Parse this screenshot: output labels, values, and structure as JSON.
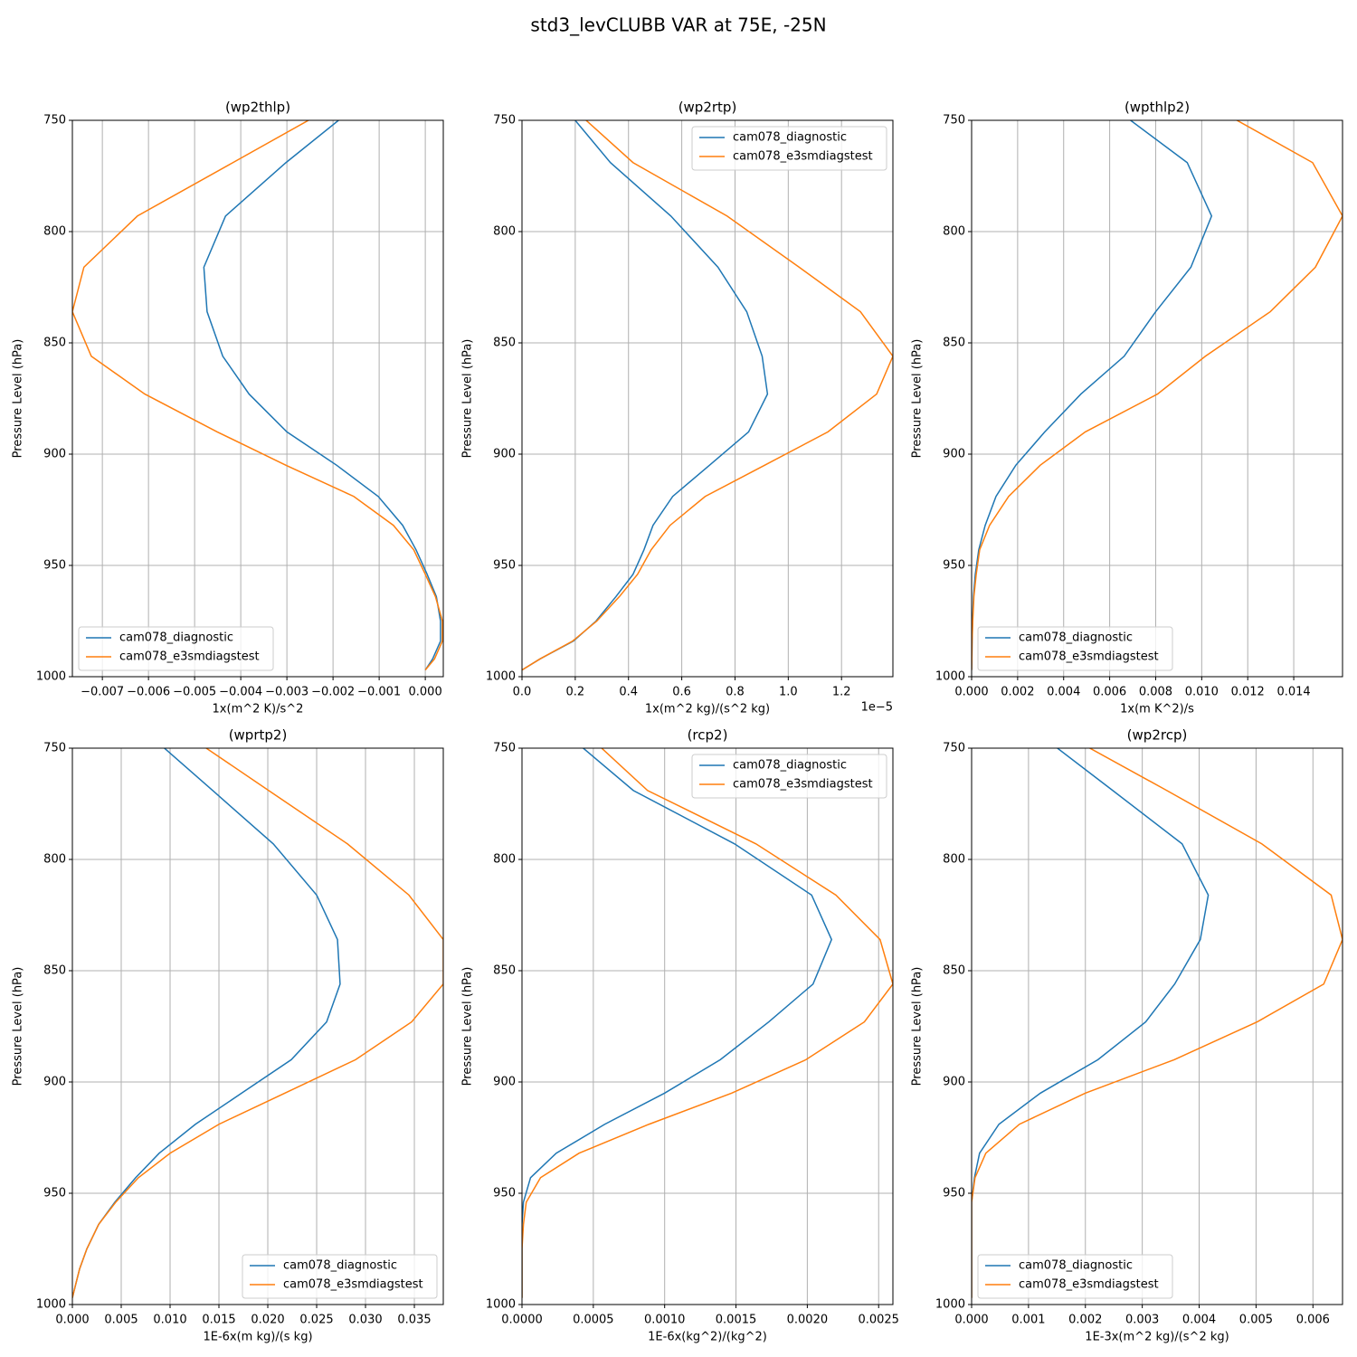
{
  "title": "std3_levCLUBB VAR at 75E, -25N",
  "chart_data": [
    {
      "type": "line",
      "title": "(wp2thlp)",
      "xlabel": "1x(m^2 K)/s^2",
      "ylabel": "Pressure Level (hPa)",
      "y": [
        743,
        769,
        793,
        816,
        836,
        856,
        873,
        890,
        905,
        919,
        932,
        943,
        954,
        964,
        975,
        984,
        992,
        997
      ],
      "series": [
        {
          "name": "cam078_diagnostic",
          "color": "#1f77b4",
          "values": [
            -0.00146,
            -0.00302,
            -0.00433,
            -0.0048,
            -0.00473,
            -0.00439,
            -0.00382,
            -0.003,
            -0.00192,
            -0.00102,
            -0.00049,
            -0.0002,
            4e-05,
            0.00024,
            0.00033,
            0.00033,
            0.00016,
            0
          ]
        },
        {
          "name": "cam078_e3smdiagstest",
          "color": "#ff7f0e",
          "values": [
            -0.00193,
            -0.00417,
            -0.00624,
            -0.0074,
            -0.00765,
            -0.00724,
            -0.00608,
            -0.00451,
            -0.00302,
            -0.00155,
            -0.00069,
            -0.00025,
            0,
            0.00022,
            0.00037,
            0.00037,
            0.0002,
            0
          ]
        }
      ],
      "xlim": [
        -0.00765,
        0.00039
      ],
      "xticks": [
        {
          "value": -0.007,
          "label": "−0.007"
        },
        {
          "value": -0.006,
          "label": "−0.006"
        },
        {
          "value": -0.005,
          "label": "−0.005"
        },
        {
          "value": -0.004,
          "label": "−0.004"
        },
        {
          "value": -0.003,
          "label": "−0.003"
        },
        {
          "value": -0.002,
          "label": "−0.002"
        },
        {
          "value": -0.001,
          "label": "−0.001"
        },
        {
          "value": 0,
          "label": "0.000"
        }
      ],
      "ylim": [
        1000,
        750
      ],
      "yticks": [
        750,
        800,
        850,
        900,
        950,
        1000
      ],
      "grid": true,
      "legend": "lower left"
    },
    {
      "type": "line",
      "title": "(wp2rtp)",
      "xlabel": "1x(m^2 kg)/(s^2 kg)",
      "ylabel": "Pressure Level (hPa)",
      "x_offset_label": "1e−5",
      "y": [
        743,
        769,
        793,
        816,
        836,
        856,
        873,
        890,
        905,
        919,
        932,
        943,
        954,
        964,
        975,
        984,
        992,
        997
      ],
      "series": [
        {
          "name": "cam078_diagnostic",
          "color": "#1f77b4",
          "values": [
            0.151,
            0.332,
            0.559,
            0.736,
            0.844,
            0.902,
            0.922,
            0.851,
            0.704,
            0.566,
            0.492,
            0.458,
            0.417,
            0.353,
            0.278,
            0.193,
            0.068,
            0
          ]
        },
        {
          "name": "cam078_e3smdiagstest",
          "color": "#ff7f0e",
          "values": [
            0.176,
            0.417,
            0.77,
            1.041,
            1.271,
            1.393,
            1.332,
            1.149,
            0.911,
            0.688,
            0.556,
            0.485,
            0.434,
            0.366,
            0.281,
            0.19,
            0.068,
            0
          ]
        }
      ],
      "xlim": [
        0,
        1.393
      ],
      "xticks": [
        {
          "value": 0,
          "label": "0.0"
        },
        0.2,
        0.4,
        0.6,
        0.8,
        {
          "value": 1,
          "label": "1.0"
        },
        1.2
      ],
      "ylim": [
        1000,
        750
      ],
      "yticks": [
        750,
        800,
        850,
        900,
        950,
        1000
      ],
      "grid": true,
      "legend": "upper right"
    },
    {
      "type": "line",
      "title": "(wpthlp2)",
      "xlabel": "1x(m K^2)/s",
      "ylabel": "Pressure Level (hPa)",
      "y": [
        743,
        769,
        793,
        816,
        836,
        856,
        873,
        890,
        905,
        919,
        932,
        943,
        954,
        964,
        975,
        984,
        992,
        997
      ],
      "series": [
        {
          "name": "cam078_diagnostic",
          "color": "#1f77b4",
          "values": [
            0.006,
            0.00937,
            0.01043,
            0.00953,
            0.008,
            0.00663,
            0.00475,
            0.00318,
            0.00192,
            0.00106,
            0.00059,
            0.00031,
            0.00016,
            8e-05,
            4e-05,
            2e-05,
            1e-05,
            0
          ]
        },
        {
          "name": "cam078_e3smdiagstest",
          "color": "#ff7f0e",
          "values": [
            0.01032,
            0.01482,
            0.01612,
            0.01494,
            0.01298,
            0.01016,
            0.00808,
            0.00494,
            0.00298,
            0.00161,
            0.00078,
            0.00035,
            0.0002,
            0.0001,
            5e-05,
            2e-05,
            1e-05,
            0
          ]
        }
      ],
      "xlim": [
        0,
        0.01612
      ],
      "xticks": [
        {
          "value": 0,
          "label": "0.000"
        },
        0.002,
        0.004,
        0.006,
        0.008,
        {
          "value": 0.01,
          "label": "0.010"
        },
        0.012,
        0.014
      ],
      "ylim": [
        1000,
        750
      ],
      "yticks": [
        750,
        800,
        850,
        900,
        950,
        1000
      ],
      "grid": true,
      "legend": "lower left"
    },
    {
      "type": "line",
      "title": "(wprtp2)",
      "xlabel": "1E-6x(m kg)/(s kg)",
      "ylabel": "Pressure Level (hPa)",
      "y": [
        743,
        769,
        793,
        816,
        836,
        856,
        873,
        890,
        905,
        919,
        932,
        943,
        954,
        964,
        975,
        984,
        992,
        997
      ],
      "series": [
        {
          "name": "cam078_diagnostic",
          "color": "#1f77b4",
          "values": [
            0.0076,
            0.01435,
            0.02056,
            0.025,
            0.02713,
            0.0274,
            0.02602,
            0.0224,
            0.01733,
            0.01259,
            0.00889,
            0.00648,
            0.00435,
            0.00269,
            0.00148,
            0.00074,
            0.00028,
            0
          ]
        },
        {
          "name": "cam078_e3smdiagstest",
          "color": "#ff7f0e",
          "values": [
            0.01135,
            0.02008,
            0.02815,
            0.03444,
            0.03796,
            0.03796,
            0.03472,
            0.02898,
            0.02175,
            0.015,
            0.01,
            0.00676,
            0.00444,
            0.00269,
            0.00148,
            0.00074,
            0.00028,
            0
          ]
        }
      ],
      "xlim": [
        0,
        0.03796
      ],
      "xticks": [
        {
          "value": 0,
          "label": "0.000"
        },
        0.005,
        {
          "value": 0.01,
          "label": "0.010"
        },
        0.015,
        {
          "value": 0.02,
          "label": "0.020"
        },
        0.025,
        {
          "value": 0.03,
          "label": "0.030"
        },
        0.035
      ],
      "ylim": [
        1000,
        750
      ],
      "yticks": [
        750,
        800,
        850,
        900,
        950,
        1000
      ],
      "grid": true,
      "legend": "lower right"
    },
    {
      "type": "line",
      "title": "(rcp2)",
      "xlabel": "1E-6x(kg^2)/(kg^2)",
      "ylabel": "Pressure Level (hPa)",
      "y": [
        743,
        769,
        793,
        816,
        836,
        856,
        873,
        890,
        905,
        919,
        932,
        943,
        954,
        964,
        975,
        984,
        992,
        997
      ],
      "series": [
        {
          "name": "cam078_diagnostic",
          "color": "#1f77b4",
          "values": [
            0.0003,
            0.00078,
            0.00149,
            0.00203,
            0.00217,
            0.00204,
            0.00173,
            0.00139,
            0.001,
            0.00058,
            0.00024,
            6e-05,
            1e-05,
            0,
            0,
            0,
            0,
            0
          ]
        },
        {
          "name": "cam078_e3smdiagstest",
          "color": "#ff7f0e",
          "values": [
            0.00044,
            0.00088,
            0.00164,
            0.0022,
            0.00251,
            0.0026,
            0.0024,
            0.00199,
            0.00147,
            0.00089,
            0.0004,
            0.00013,
            3e-05,
            1e-05,
            0,
            0,
            0,
            0
          ]
        }
      ],
      "xlim": [
        0,
        0.0026
      ],
      "xticks": [
        {
          "value": 0,
          "label": "0.0000"
        },
        0.0005,
        {
          "value": 0.001,
          "label": "0.0010"
        },
        0.0015,
        {
          "value": 0.002,
          "label": "0.0020"
        },
        0.0025
      ],
      "ylim": [
        1000,
        750
      ],
      "yticks": [
        750,
        800,
        850,
        900,
        950,
        1000
      ],
      "grid": true,
      "legend": "upper right"
    },
    {
      "type": "line",
      "title": "(wp2rcp)",
      "xlabel": "1E-3x(m^2 kg)/(s^2 kg)",
      "ylabel": "Pressure Level (hPa)",
      "y": [
        743,
        769,
        793,
        816,
        836,
        856,
        873,
        890,
        905,
        919,
        932,
        943,
        954,
        964,
        975,
        984,
        992,
        997
      ],
      "series": [
        {
          "name": "cam078_diagnostic",
          "color": "#1f77b4",
          "values": [
            0.00115,
            0.00248,
            0.0037,
            0.00416,
            0.00402,
            0.00357,
            0.00306,
            0.00222,
            0.00121,
            0.00048,
            0.00014,
            5e-05,
            0,
            0,
            0,
            0,
            0,
            0
          ]
        },
        {
          "name": "cam078_e3smdiagstest",
          "color": "#ff7f0e",
          "values": [
            0.00158,
            0.00343,
            0.0051,
            0.00632,
            0.00652,
            0.00619,
            0.00502,
            0.00356,
            0.002,
            0.00084,
            0.00025,
            6e-05,
            0,
            0,
            0,
            0,
            0,
            0
          ]
        }
      ],
      "xlim": [
        0,
        0.00652
      ],
      "xticks": [
        {
          "value": 0,
          "label": "0.000"
        },
        0.001,
        0.002,
        0.003,
        0.004,
        0.005,
        0.006
      ],
      "ylim": [
        1000,
        750
      ],
      "yticks": [
        750,
        800,
        850,
        900,
        950,
        1000
      ],
      "grid": true,
      "legend": "lower left"
    }
  ]
}
